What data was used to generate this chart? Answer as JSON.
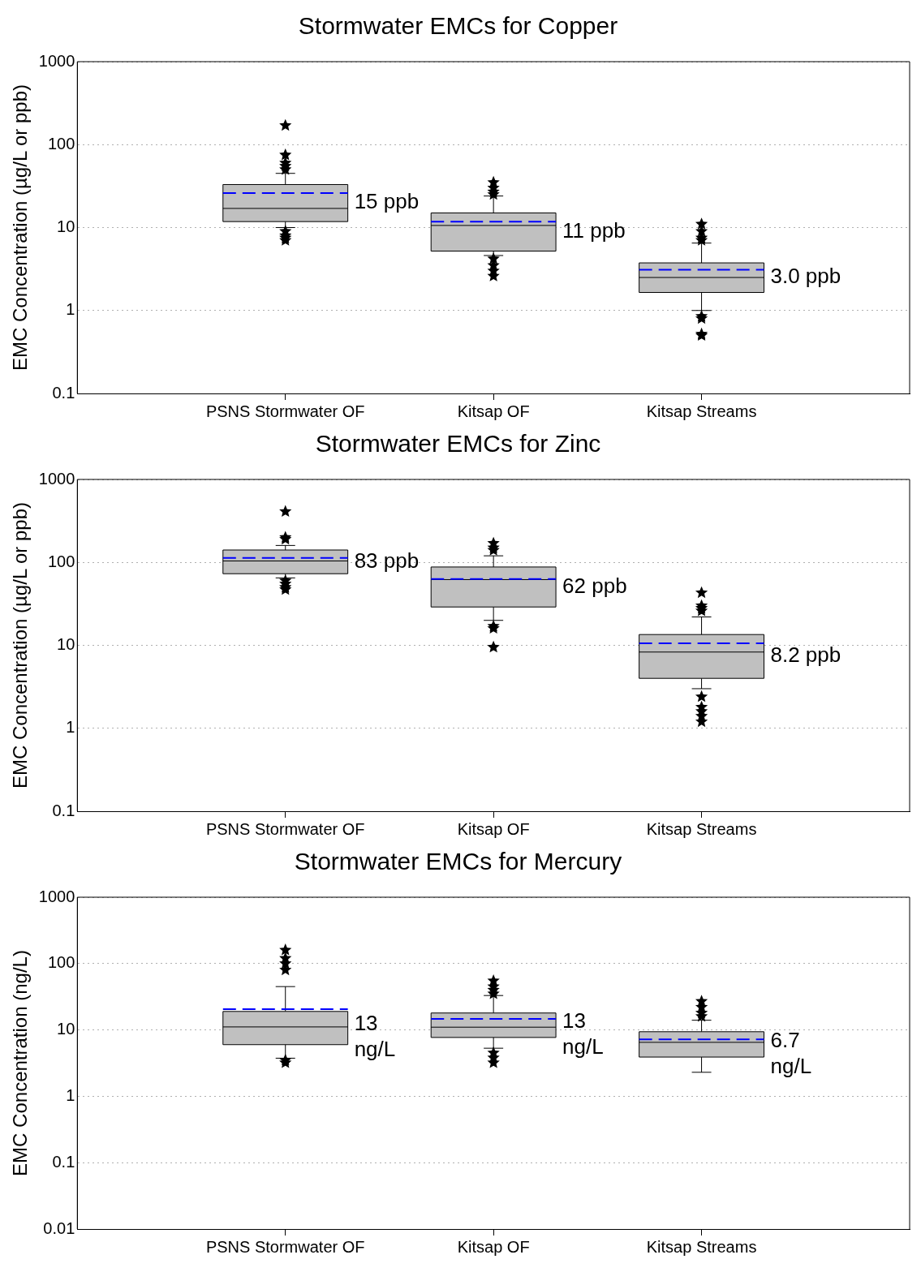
{
  "chart_data": [
    {
      "type": "box",
      "title": "Stormwater EMCs for Copper",
      "ylabel": "EMC Concentration (µg/L or ppb)",
      "categories": [
        "PSNS Stormwater OF",
        "Kitsap OF",
        "Kitsap Streams"
      ],
      "color": "#c0c0c0",
      "marker": "star",
      "log": true,
      "grid": "y",
      "ylim": [
        0.1,
        1000
      ],
      "yticks": [
        0.1,
        1,
        10,
        100,
        1000
      ],
      "boxes": [
        {
          "low": 10,
          "q1": 11.8,
          "median": 17,
          "q3": 33,
          "high": 45,
          "mean": 26,
          "outliers": [
            170,
            75,
            60,
            55,
            50,
            9,
            8,
            7.5,
            7
          ]
        },
        {
          "low": 4.6,
          "q1": 5.2,
          "median": 10.6,
          "q3": 15,
          "high": 24,
          "mean": 11.8,
          "outliers": [
            35,
            30,
            27,
            25,
            4.2,
            3.5,
            3,
            2.6
          ]
        },
        {
          "low": 1,
          "q1": 1.65,
          "median": 2.5,
          "q3": 3.75,
          "high": 6.5,
          "mean": 3.1,
          "outliers": [
            11,
            9,
            7.5,
            7,
            0.85,
            0.8,
            0.52,
            0.5
          ]
        }
      ],
      "annotations": [
        "15 ppb",
        "11 ppb",
        "3.0 ppb"
      ]
    },
    {
      "type": "box",
      "title": "Stormwater EMCs for Zinc",
      "ylabel": "EMC Concentration (µg/L or ppb)",
      "categories": [
        "PSNS Stormwater OF",
        "Kitsap OF",
        "Kitsap Streams"
      ],
      "color": "#c0c0c0",
      "marker": "star",
      "log": true,
      "grid": "y",
      "ylim": [
        0.1,
        1000
      ],
      "yticks": [
        0.1,
        1,
        10,
        100,
        1000
      ],
      "boxes": [
        {
          "low": 65,
          "q1": 73,
          "median": 104,
          "q3": 141,
          "high": 160,
          "mean": 113,
          "outliers": [
            410,
            200,
            190,
            60,
            55,
            50,
            47
          ]
        },
        {
          "low": 20,
          "q1": 29,
          "median": 62,
          "q3": 88,
          "high": 120,
          "mean": 63,
          "outliers": [
            170,
            150,
            140,
            17,
            16,
            9.5
          ]
        },
        {
          "low": 3,
          "q1": 4,
          "median": 8.3,
          "q3": 13.5,
          "high": 22,
          "mean": 10.6,
          "outliers": [
            43,
            30,
            28,
            26,
            2.4,
            1.8,
            1.6,
            1.4,
            1.2
          ]
        }
      ],
      "annotations": [
        "83 ppb",
        "62 ppb",
        "8.2 ppb"
      ]
    },
    {
      "type": "box",
      "title": "Stormwater EMCs for Mercury",
      "ylabel": "EMC Concentration (ng/L)",
      "categories": [
        "PSNS Stormwater OF",
        "Kitsap OF",
        "Kitsap Streams"
      ],
      "color": "#c0c0c0",
      "marker": "star",
      "log": true,
      "grid": "y",
      "ylim": [
        0.01,
        1000
      ],
      "yticks": [
        0.01,
        0.1,
        1,
        10,
        100,
        1000
      ],
      "boxes": [
        {
          "low": 3.75,
          "q1": 6,
          "median": 11.1,
          "q3": 19,
          "high": 45,
          "mean": 20.6,
          "outliers": [
            160,
            120,
            100,
            80,
            3.5,
            3.2
          ]
        },
        {
          "low": 5.3,
          "q1": 7.7,
          "median": 11,
          "q3": 18,
          "high": 33,
          "mean": 14.7,
          "outliers": [
            55,
            45,
            40,
            35,
            4.5,
            3.8,
            3.2
          ]
        },
        {
          "low": 2.3,
          "q1": 3.9,
          "median": 6.5,
          "q3": 9.4,
          "high": 14,
          "mean": 7.2,
          "outliers": [
            27,
            22,
            18,
            16
          ]
        }
      ],
      "annotations": [
        "13\nng/L",
        "13\nng/L",
        "6.7\nng/L"
      ]
    }
  ]
}
